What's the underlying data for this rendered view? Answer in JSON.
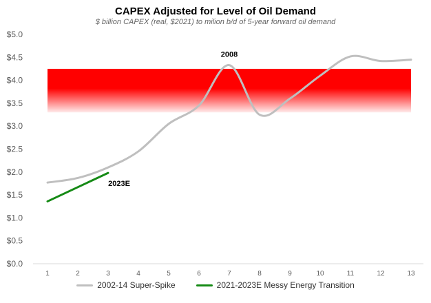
{
  "chart_data": {
    "type": "line",
    "title": "CAPEX Adjusted for Level of Oil Demand",
    "subtitle": "$ billion CAPEX (real, $2021) to milion b/d of 5-year forward  oil demand",
    "xlabel": "",
    "ylabel": "",
    "x": [
      1,
      2,
      3,
      4,
      5,
      6,
      7,
      8,
      9,
      10,
      11,
      12,
      13
    ],
    "ylim": [
      0,
      5
    ],
    "yticks": [
      0,
      0.5,
      1.0,
      1.5,
      2.0,
      2.5,
      3.0,
      3.5,
      4.0,
      4.5,
      5.0
    ],
    "ytick_labels": [
      "$0.0",
      "$0.5",
      "$1.0",
      "$1.5",
      "$2.0",
      "$2.5",
      "$3.0",
      "$3.5",
      "$4.0",
      "$4.5",
      "$5.0"
    ],
    "xtick_labels": [
      "1",
      "2",
      "3",
      "4",
      "5",
      "6",
      "7",
      "8",
      "9",
      "10",
      "11",
      "12",
      "13"
    ],
    "grid": false,
    "legend_position": "bottom",
    "band": {
      "from": 3.3,
      "to": 4.25,
      "color": "#ff0000"
    },
    "series": [
      {
        "name": "2002-14 Super-Spike",
        "color": "#bfbfbf",
        "x": [
          1,
          2,
          3,
          4,
          5,
          6,
          7,
          8,
          9,
          10,
          11,
          12,
          13
        ],
        "values": [
          1.77,
          1.87,
          2.1,
          2.45,
          3.05,
          3.45,
          4.33,
          3.25,
          3.6,
          4.1,
          4.52,
          4.42,
          4.45
        ]
      },
      {
        "name": "2021-2023E Messy Energy Transition",
        "color": "#158a15",
        "x": [
          1,
          3
        ],
        "values": [
          1.36,
          1.98
        ]
      }
    ],
    "annotations": [
      {
        "text": "2008",
        "x": 7,
        "y": 4.33,
        "anchor": "above"
      },
      {
        "text": "2023E",
        "x": 3,
        "y": 1.98,
        "anchor": "below"
      }
    ]
  }
}
